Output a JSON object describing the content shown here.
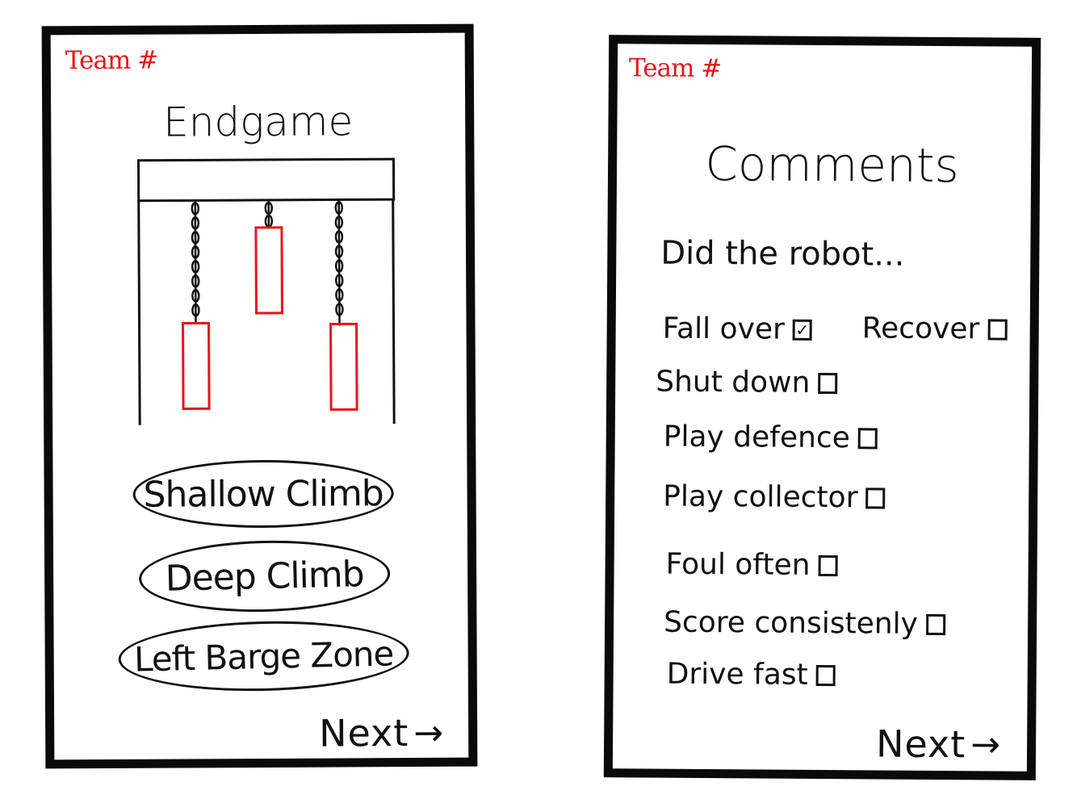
{
  "endgame_screen": {
    "team_label": "Team #",
    "title": "Endgame",
    "buttons": {
      "shallow_climb": "Shallow Climb",
      "deep_climb": "Deep Climb",
      "left_barge_zone": "Left Barge Zone"
    },
    "next_label": "Next",
    "next_arrow": "→"
  },
  "comments_screen": {
    "team_label": "Team #",
    "title": "Comments",
    "prompt": "Did the robot...",
    "options": [
      {
        "label": "Fall over",
        "checked": true
      },
      {
        "label": "Recover",
        "checked": false
      },
      {
        "label": "Shut down",
        "checked": false
      },
      {
        "label": "Play defence",
        "checked": false
      },
      {
        "label": "Play collector",
        "checked": false
      },
      {
        "label": "Foul often",
        "checked": false
      },
      {
        "label": "Score consistenly",
        "checked": false
      },
      {
        "label": "Drive fast",
        "checked": false
      }
    ],
    "checkmark_glyph": "✓",
    "next_label": "Next",
    "next_arrow": "→"
  },
  "colors": {
    "accent": "#e8141b",
    "ink": "#111111",
    "border": "#0a0a0a"
  },
  "icons": {
    "cage": "cage-illustration",
    "chain": "chain-icon",
    "arrow": "arrow-right-icon",
    "checkbox": "checkbox-icon"
  }
}
